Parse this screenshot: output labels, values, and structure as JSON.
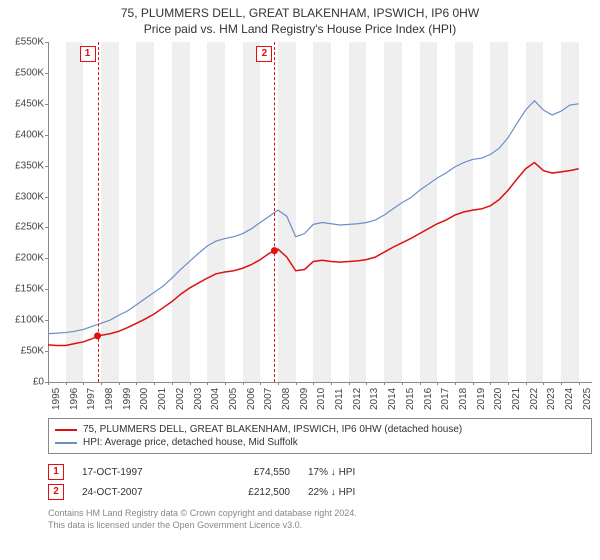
{
  "title_line1": "75, PLUMMERS DELL, GREAT BLAKENHAM, IPSWICH, IP6 0HW",
  "title_line2": "Price paid vs. HM Land Registry's House Price Index (HPI)",
  "chart": {
    "type": "line",
    "background_color": "#ffffff",
    "band_color": "#e6e6e6",
    "axis_color": "#888888",
    "tick_label_color": "#444444",
    "tick_font_size": 10,
    "title_font_size": 12,
    "title_color": "#333333",
    "xlim_years": [
      1995,
      2025.75
    ],
    "x_ticks": [
      1995,
      1996,
      1997,
      1998,
      1999,
      2000,
      2001,
      2002,
      2003,
      2004,
      2005,
      2006,
      2007,
      2008,
      2009,
      2010,
      2011,
      2012,
      2013,
      2014,
      2015,
      2016,
      2017,
      2018,
      2019,
      2020,
      2021,
      2022,
      2023,
      2024,
      2025
    ],
    "ylim": [
      0,
      550000
    ],
    "y_ticks": [
      0,
      50000,
      100000,
      150000,
      200000,
      250000,
      300000,
      350000,
      400000,
      450000,
      500000,
      550000
    ],
    "y_tick_labels": [
      "£0",
      "£50K",
      "£100K",
      "£150K",
      "£200K",
      "£250K",
      "£300K",
      "£350K",
      "£400K",
      "£450K",
      "£500K",
      "£550K"
    ],
    "band_start_years": [
      1996,
      1998,
      2000,
      2002,
      2004,
      2006,
      2008,
      2010,
      2012,
      2014,
      2016,
      2018,
      2020,
      2022,
      2024
    ],
    "series": [
      {
        "name": "price_paid",
        "label": "75, PLUMMERS DELL, GREAT BLAKENHAM, IPSWICH, IP6 0HW (detached house)",
        "color": "#e01010",
        "line_width": 1.5,
        "x": [
          1995,
          1995.5,
          1996,
          1996.5,
          1997,
          1997.5,
          1997.8,
          1998.5,
          1999,
          1999.5,
          2000,
          2000.5,
          2001,
          2001.5,
          2002,
          2002.5,
          2003,
          2003.5,
          2004,
          2004.5,
          2005,
          2005.5,
          2006,
          2006.5,
          2007,
          2007.5,
          2007.8,
          2008,
          2008.5,
          2009,
          2009.5,
          2010,
          2010.5,
          2011,
          2011.5,
          2012,
          2012.5,
          2013,
          2013.5,
          2014,
          2014.5,
          2015,
          2015.5,
          2016,
          2016.5,
          2017,
          2017.5,
          2018,
          2018.5,
          2019,
          2019.5,
          2020,
          2020.5,
          2021,
          2021.5,
          2022,
          2022.5,
          2023,
          2023.5,
          2024,
          2024.5,
          2025
        ],
        "y": [
          60000,
          59000,
          59000,
          62000,
          65000,
          70000,
          74550,
          78000,
          82000,
          88000,
          95000,
          102000,
          110000,
          120000,
          130000,
          142000,
          152000,
          160000,
          168000,
          175000,
          178000,
          180000,
          184000,
          190000,
          198000,
          208000,
          212500,
          215000,
          202000,
          180000,
          182000,
          195000,
          197000,
          195000,
          194000,
          195000,
          196000,
          198000,
          202000,
          210000,
          218000,
          225000,
          232000,
          240000,
          248000,
          256000,
          262000,
          270000,
          275000,
          278000,
          280000,
          285000,
          295000,
          310000,
          328000,
          345000,
          355000,
          342000,
          338000,
          340000,
          342000,
          345000
        ]
      },
      {
        "name": "hpi",
        "label": "HPI: Average price, detached house, Mid Suffolk",
        "color": "#6a8fc7",
        "line_width": 1.2,
        "x": [
          1995,
          1995.5,
          1996,
          1996.5,
          1997,
          1997.5,
          1998,
          1998.5,
          1999,
          1999.5,
          2000,
          2000.5,
          2001,
          2001.5,
          2002,
          2002.5,
          2003,
          2003.5,
          2004,
          2004.5,
          2005,
          2005.5,
          2006,
          2006.5,
          2007,
          2007.5,
          2008,
          2008.5,
          2009,
          2009.5,
          2010,
          2010.5,
          2011,
          2011.5,
          2012,
          2012.5,
          2013,
          2013.5,
          2014,
          2014.5,
          2015,
          2015.5,
          2016,
          2016.5,
          2017,
          2017.5,
          2018,
          2018.5,
          2019,
          2019.5,
          2020,
          2020.5,
          2021,
          2021.5,
          2022,
          2022.5,
          2023,
          2023.5,
          2024,
          2024.5,
          2025
        ],
        "y": [
          78000,
          79000,
          80000,
          82000,
          85000,
          90000,
          95000,
          100000,
          108000,
          115000,
          125000,
          135000,
          145000,
          155000,
          168000,
          182000,
          195000,
          208000,
          220000,
          228000,
          232000,
          235000,
          240000,
          248000,
          258000,
          268000,
          278000,
          268000,
          235000,
          240000,
          255000,
          258000,
          256000,
          254000,
          255000,
          256000,
          258000,
          262000,
          270000,
          280000,
          290000,
          298000,
          310000,
          320000,
          330000,
          338000,
          348000,
          355000,
          360000,
          362000,
          368000,
          378000,
          395000,
          418000,
          440000,
          455000,
          440000,
          432000,
          438000,
          448000,
          450000
        ]
      }
    ],
    "marker_dot_color": "#e01010",
    "marker_dot_radius": 3.5,
    "markers": [
      {
        "num": "1",
        "year": 1997.8,
        "value": 74550
      },
      {
        "num": "2",
        "year": 2007.8,
        "value": 212500
      }
    ]
  },
  "legend": {
    "border_color": "#888888",
    "font_size": 10
  },
  "datapoints": [
    {
      "num": "1",
      "date": "17-OCT-1997",
      "price": "£74,550",
      "pct": "17% ↓ HPI"
    },
    {
      "num": "2",
      "date": "24-OCT-2007",
      "price": "£212,500",
      "pct": "22% ↓ HPI"
    }
  ],
  "footer_line1": "Contains HM Land Registry data © Crown copyright and database right 2024.",
  "footer_line2": "This data is licensed under the Open Government Licence v3.0.",
  "footer_color": "#888888",
  "footer_font_size": 9
}
